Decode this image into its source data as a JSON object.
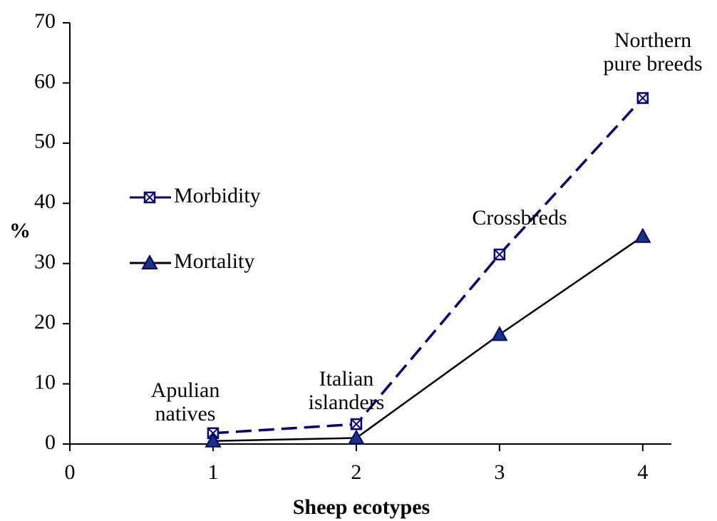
{
  "chart_data": {
    "type": "line",
    "xlabel": "Sheep ecotypes",
    "ylabel": "%",
    "x": [
      1,
      2,
      3,
      4
    ],
    "xlim": [
      0,
      4.2
    ],
    "xticks": [
      0,
      1,
      2,
      3,
      4
    ],
    "ylim": [
      0,
      70
    ],
    "yticks": [
      0,
      10,
      20,
      30,
      40,
      50,
      60,
      70
    ],
    "grid": false,
    "legend": "left",
    "series": [
      {
        "name": "Morbidity",
        "color": "#000080",
        "marker": "square-x",
        "dashed": true,
        "values": [
          1.8,
          3.3,
          31.5,
          57.5
        ]
      },
      {
        "name": "Mortality",
        "color": "#000000",
        "marker_color": "#1a3580",
        "marker": "triangle",
        "dashed": false,
        "values": [
          0.5,
          1.0,
          18.2,
          34.5
        ]
      }
    ],
    "annotations": [
      {
        "lines": [
          "Apulian",
          "natives"
        ]
      },
      {
        "lines": [
          "Italian",
          "islanders"
        ]
      },
      {
        "lines": [
          "Crossbreds"
        ]
      },
      {
        "lines": [
          "Northern",
          "pure breeds"
        ]
      }
    ]
  }
}
